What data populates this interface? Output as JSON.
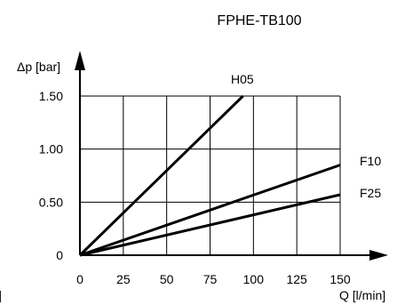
{
  "chart_data": {
    "type": "line",
    "title": "FPHE-TB100",
    "xlabel": "Q [l/min]",
    "ylabel": "Δp [bar]",
    "xlim": [
      0,
      150
    ],
    "ylim": [
      0,
      1.5
    ],
    "x_ticks": [
      0,
      25,
      50,
      75,
      100,
      125,
      150
    ],
    "x_tick_labels": [
      "0",
      "25",
      "50",
      "75",
      "100",
      "125",
      "150"
    ],
    "y_ticks": [
      0,
      0.5,
      1.0,
      1.5
    ],
    "y_tick_labels": [
      "0",
      "0.50",
      "1.00",
      "1.50"
    ],
    "grid": true,
    "series": [
      {
        "name": "H05",
        "x": [
          0,
          94
        ],
        "values": [
          0,
          1.5
        ]
      },
      {
        "name": "F10",
        "x": [
          0,
          150
        ],
        "values": [
          0,
          0.85
        ]
      },
      {
        "name": "F25",
        "x": [
          0,
          150
        ],
        "values": [
          0,
          0.57
        ]
      }
    ],
    "left_edge_text": "]"
  }
}
